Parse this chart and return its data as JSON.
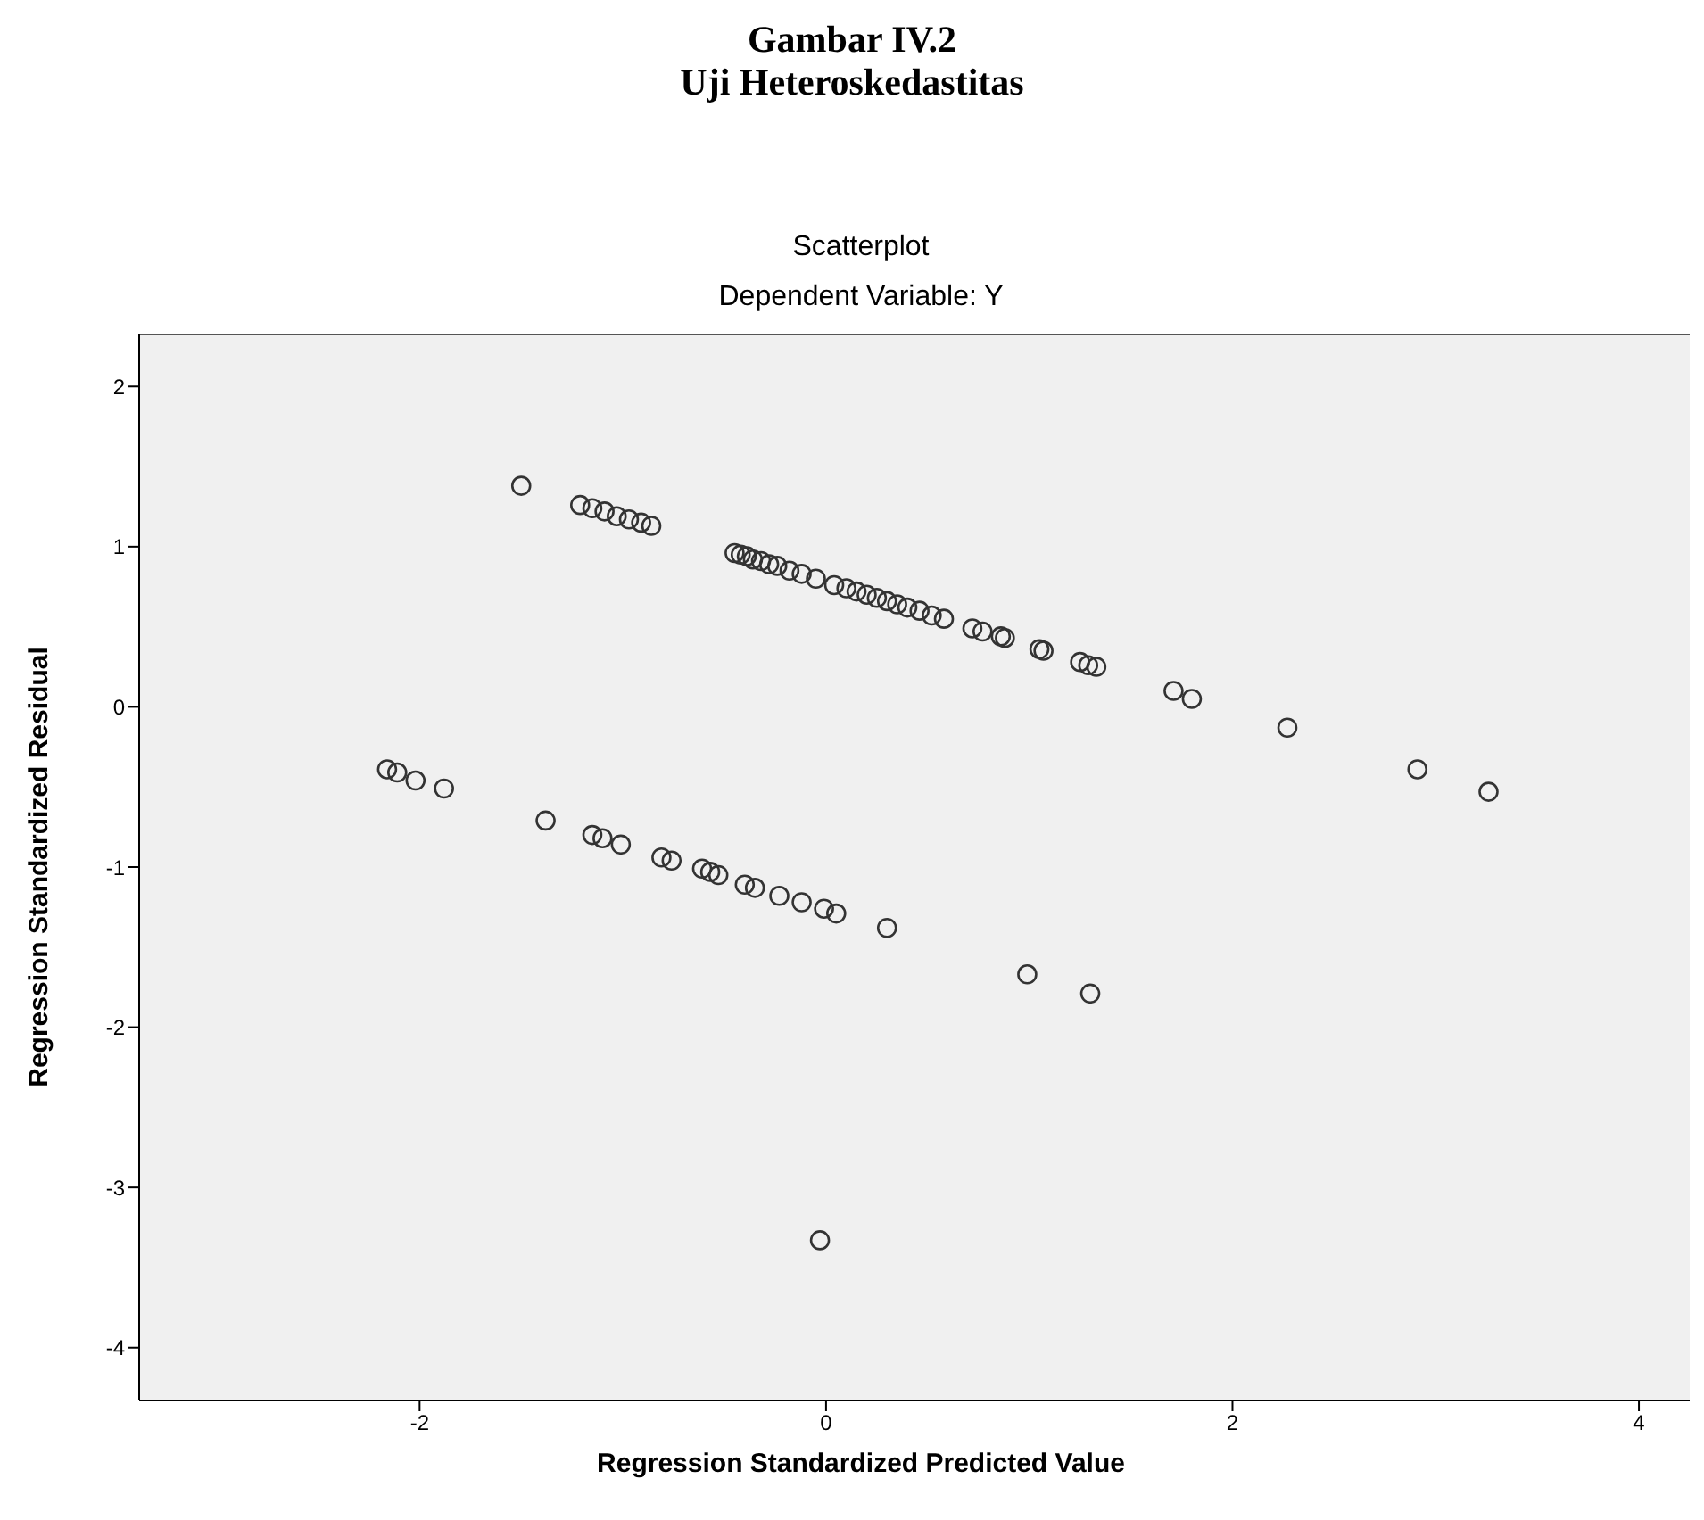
{
  "chart_data": {
    "type": "scatter",
    "title": "Gambar IV.2",
    "subtitle": "Uji Heteroskedastitas",
    "annotations": [
      "Scatterplot",
      "Dependent Variable: Y"
    ],
    "xlabel": "Regression Standardized Predicted Value",
    "ylabel": "Regression Standardized Residual",
    "xlim": [
      -3.38,
      4.25
    ],
    "xticks": [
      -2,
      0,
      2,
      4
    ],
    "ylim": [
      -4.33,
      2.33
    ],
    "yticks": [
      -4,
      -3,
      -2,
      -1,
      0,
      1,
      2
    ],
    "grid": false,
    "legend": false,
    "marker": "circle",
    "series": [
      {
        "color": "#333333",
        "x": [
          -1.5,
          -1.21,
          -1.15,
          -1.09,
          -1.03,
          -0.97,
          -0.91,
          -0.86,
          -0.45,
          -0.42,
          -0.39,
          -0.36,
          -0.32,
          -0.28,
          -0.24,
          -0.18,
          -0.12,
          -0.05,
          0.04,
          0.1,
          0.15,
          0.2,
          0.25,
          0.3,
          0.35,
          0.4,
          0.46,
          0.52,
          0.58,
          0.72,
          0.77,
          0.86,
          0.88,
          1.05,
          1.07,
          1.25,
          1.29,
          1.33,
          1.71,
          1.8,
          2.27,
          2.91,
          3.26,
          -2.16,
          -2.11,
          -2.02,
          -1.88,
          -1.38,
          -1.15,
          -1.1,
          -1.01,
          -0.81,
          -0.76,
          -0.61,
          -0.57,
          -0.53,
          -0.4,
          -0.35,
          -0.23,
          -0.12,
          -0.01,
          0.05,
          0.3,
          0.99,
          1.3,
          -0.03
        ],
        "values": [
          1.38,
          1.26,
          1.24,
          1.22,
          1.19,
          1.17,
          1.15,
          1.13,
          0.96,
          0.95,
          0.94,
          0.92,
          0.91,
          0.89,
          0.88,
          0.85,
          0.83,
          0.8,
          0.76,
          0.74,
          0.72,
          0.7,
          0.68,
          0.66,
          0.64,
          0.62,
          0.6,
          0.57,
          0.55,
          0.49,
          0.47,
          0.44,
          0.43,
          0.36,
          0.35,
          0.28,
          0.26,
          0.25,
          0.1,
          0.05,
          -0.13,
          -0.39,
          -0.53,
          -0.39,
          -0.41,
          -0.46,
          -0.51,
          -0.71,
          -0.8,
          -0.82,
          -0.86,
          -0.94,
          -0.96,
          -1.01,
          -1.03,
          -1.05,
          -1.11,
          -1.13,
          -1.18,
          -1.22,
          -1.26,
          -1.29,
          -1.38,
          -1.67,
          -1.79,
          -3.33
        ]
      }
    ]
  }
}
